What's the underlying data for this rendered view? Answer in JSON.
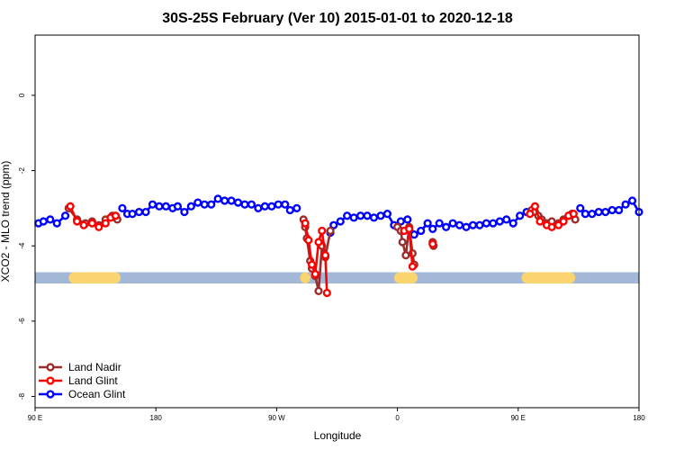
{
  "chart_data": {
    "type": "line",
    "title": "30S-25S February (Ver 10)   2015-01-01 to 2020-12-18",
    "xlabel": "Longitude",
    "ylabel": "XCO2 - MLO trend (ppm)",
    "xlim": [
      90,
      450
    ],
    "ylim": [
      -8.3,
      1.6
    ],
    "x_ticks": [
      {
        "value": 90,
        "label": "90 E"
      },
      {
        "value": 162,
        "label": "180"
      },
      {
        "value": 234,
        "label": "90 W"
      },
      {
        "value": 306,
        "label": "0"
      },
      {
        "value": 378,
        "label": "90 E"
      },
      {
        "value": 450,
        "label": "180"
      }
    ],
    "y_ticks": [
      {
        "value": 0,
        "label": "0"
      },
      {
        "value": -2,
        "label": "-2"
      },
      {
        "value": -4,
        "label": "-4"
      },
      {
        "value": -6,
        "label": "-6"
      },
      {
        "value": -8,
        "label": "-8"
      }
    ],
    "grid": false,
    "legend_position": "bottom-left",
    "band": {
      "y_range": [
        -5.0,
        -4.7
      ],
      "ocean_color": "#a3b8d6",
      "land_color": "#fad46f",
      "land_segments": [
        [
          110,
          141
        ],
        [
          248,
          254
        ],
        [
          304,
          318
        ],
        [
          380,
          412
        ]
      ]
    },
    "series": [
      {
        "name": "Land Nadir",
        "color": "#9b2d2d",
        "points": [
          [
            110,
            -3.0
          ],
          [
            115,
            -3.3
          ],
          [
            120,
            -3.4
          ],
          [
            124,
            -3.35
          ],
          [
            128,
            -3.45
          ],
          [
            132,
            -3.3
          ],
          [
            136,
            -3.2
          ],
          [
            139,
            -3.3
          ],
          [
            250,
            -3.3
          ],
          [
            251,
            -3.5
          ],
          [
            252,
            -3.8
          ],
          [
            254,
            -4.4
          ],
          [
            255,
            -4.6
          ],
          [
            257,
            -4.8
          ],
          [
            259,
            -5.2
          ],
          [
            261,
            -4.0
          ],
          [
            263,
            -4.3
          ],
          [
            266,
            -3.6
          ],
          [
            306,
            -3.5
          ],
          [
            308,
            -3.6
          ],
          [
            309,
            -3.9
          ],
          [
            311,
            -4.25
          ],
          [
            313,
            -3.5
          ],
          [
            315,
            -4.2
          ],
          [
            316,
            -4.5
          ],
          [
            327,
            -3.9
          ],
          [
            327.5,
            -4.0
          ],
          [
            386,
            -3.05
          ],
          [
            388,
            -3.1
          ],
          [
            390,
            -3.2
          ],
          [
            392,
            -3.3
          ],
          [
            395,
            -3.4
          ],
          [
            398,
            -3.35
          ],
          [
            402,
            -3.4
          ],
          [
            405,
            -3.3
          ],
          [
            408,
            -3.2
          ],
          [
            410,
            -3.15
          ],
          [
            412,
            -3.3
          ]
        ]
      },
      {
        "name": "Land Glint",
        "color": "#ff0000",
        "points": [
          [
            111,
            -2.95
          ],
          [
            115,
            -3.35
          ],
          [
            119,
            -3.45
          ],
          [
            124,
            -3.4
          ],
          [
            128,
            -3.5
          ],
          [
            132,
            -3.4
          ],
          [
            135,
            -3.25
          ],
          [
            138,
            -3.2
          ],
          [
            251,
            -3.4
          ],
          [
            253,
            -3.85
          ],
          [
            255,
            -4.5
          ],
          [
            257,
            -4.75
          ],
          [
            259,
            -3.9
          ],
          [
            261,
            -3.6
          ],
          [
            263,
            -4.25
          ],
          [
            264,
            -5.25
          ],
          [
            310,
            -3.6
          ],
          [
            313,
            -3.55
          ],
          [
            315,
            -4.55
          ],
          [
            327,
            -3.95
          ],
          [
            385,
            -3.15
          ],
          [
            388,
            -2.95
          ],
          [
            391,
            -3.35
          ],
          [
            395,
            -3.45
          ],
          [
            398,
            -3.5
          ],
          [
            402,
            -3.45
          ],
          [
            405,
            -3.35
          ],
          [
            408,
            -3.2
          ],
          [
            411,
            -3.15
          ]
        ]
      },
      {
        "name": "Ocean Glint",
        "color": "#0000ff",
        "points": [
          [
            92,
            -3.4
          ],
          [
            95,
            -3.35
          ],
          [
            99,
            -3.3
          ],
          [
            103,
            -3.4
          ],
          [
            108,
            -3.2
          ],
          [
            142,
            -3.0
          ],
          [
            145,
            -3.15
          ],
          [
            148,
            -3.15
          ],
          [
            152,
            -3.1
          ],
          [
            156,
            -3.1
          ],
          [
            160,
            -2.9
          ],
          [
            164,
            -2.95
          ],
          [
            168,
            -2.95
          ],
          [
            172,
            -3.0
          ],
          [
            175,
            -2.95
          ],
          [
            179,
            -3.1
          ],
          [
            183,
            -2.95
          ],
          [
            187,
            -2.85
          ],
          [
            191,
            -2.9
          ],
          [
            195,
            -2.9
          ],
          [
            199,
            -2.75
          ],
          [
            203,
            -2.8
          ],
          [
            207,
            -2.8
          ],
          [
            211,
            -2.85
          ],
          [
            215,
            -2.9
          ],
          [
            219,
            -2.9
          ],
          [
            223,
            -3.0
          ],
          [
            227,
            -2.95
          ],
          [
            231,
            -2.95
          ],
          [
            235,
            -2.9
          ],
          [
            239,
            -2.9
          ],
          [
            242,
            -3.05
          ],
          [
            246,
            -3.0
          ],
          [
            266,
            -3.65
          ],
          [
            268,
            -3.45
          ],
          [
            272,
            -3.35
          ],
          [
            276,
            -3.2
          ],
          [
            280,
            -3.25
          ],
          [
            284,
            -3.2
          ],
          [
            288,
            -3.2
          ],
          [
            292,
            -3.25
          ],
          [
            296,
            -3.2
          ],
          [
            300,
            -3.15
          ],
          [
            304,
            -3.45
          ],
          [
            308,
            -3.35
          ],
          [
            312,
            -3.3
          ],
          [
            316,
            -3.7
          ],
          [
            320,
            -3.6
          ],
          [
            324,
            -3.4
          ],
          [
            327,
            -3.55
          ],
          [
            331,
            -3.4
          ],
          [
            335,
            -3.5
          ],
          [
            339,
            -3.4
          ],
          [
            343,
            -3.45
          ],
          [
            347,
            -3.5
          ],
          [
            351,
            -3.45
          ],
          [
            355,
            -3.45
          ],
          [
            359,
            -3.4
          ],
          [
            363,
            -3.4
          ],
          [
            367,
            -3.35
          ],
          [
            371,
            -3.3
          ],
          [
            375,
            -3.4
          ],
          [
            379,
            -3.2
          ],
          [
            383,
            -3.1
          ],
          [
            415,
            -3.0
          ],
          [
            418,
            -3.15
          ],
          [
            422,
            -3.15
          ],
          [
            426,
            -3.1
          ],
          [
            430,
            -3.1
          ],
          [
            434,
            -3.05
          ],
          [
            438,
            -3.05
          ],
          [
            442,
            -2.9
          ],
          [
            446,
            -2.8
          ],
          [
            450,
            -3.1
          ]
        ]
      }
    ]
  }
}
